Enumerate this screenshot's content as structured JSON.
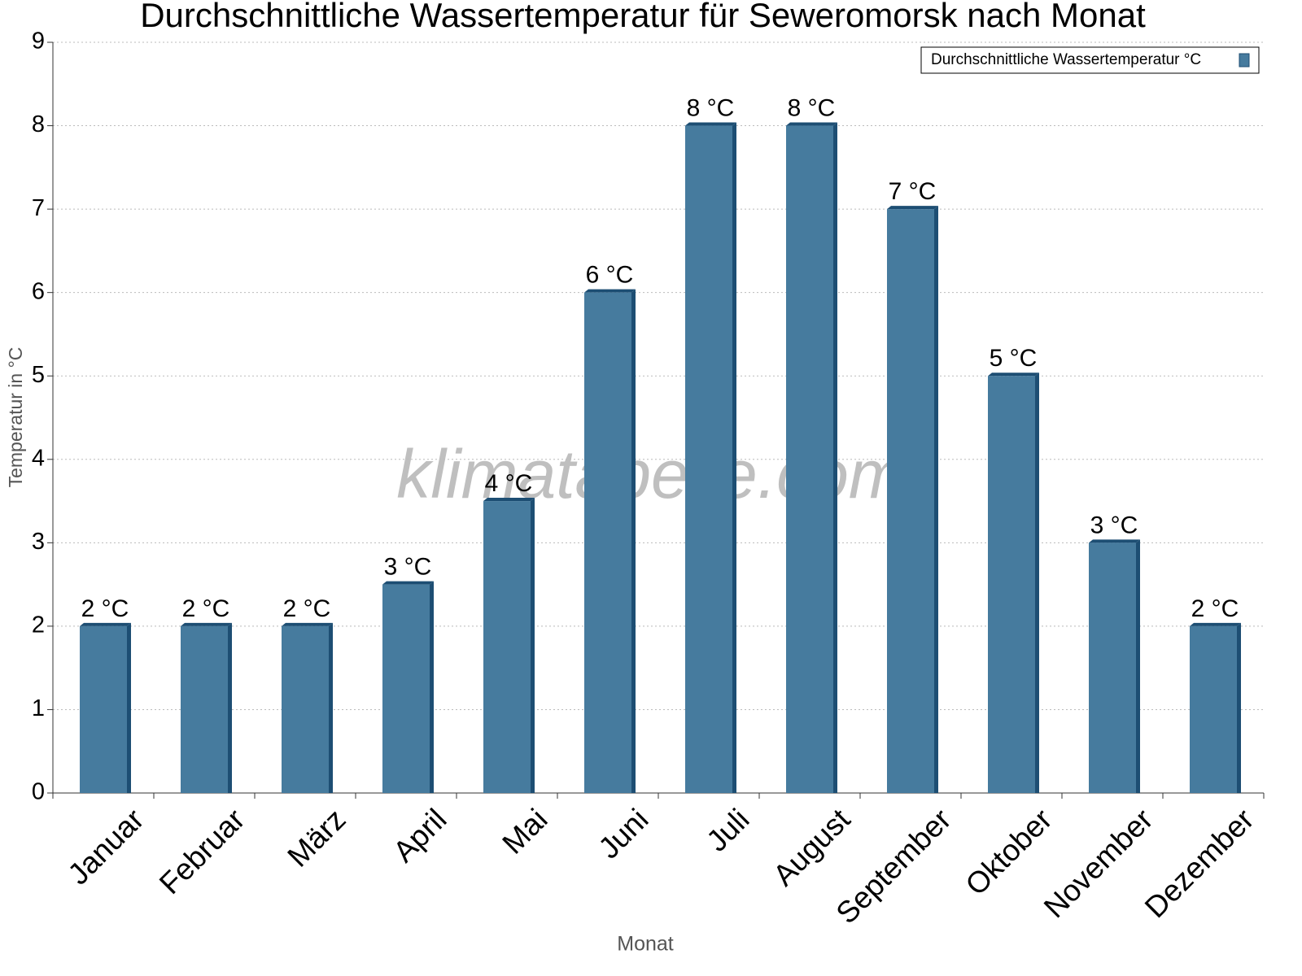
{
  "chart_data": {
    "type": "bar",
    "title": "Durchschnittliche Wassertemperatur für Seweromorsk nach Monat",
    "x_label": "Monat",
    "y_label": "Temperatur in °C",
    "watermark": "klimatabelle.com",
    "categories": [
      "Januar",
      "Februar",
      "März",
      "April",
      "Mai",
      "Juni",
      "Juli",
      "August",
      "September",
      "Oktober",
      "November",
      "Dezember"
    ],
    "series": [
      {
        "name": "Durchschnittliche Wassertemperatur °C",
        "color": "#467b9e",
        "side_color": "#1d4e73",
        "values": [
          2,
          2,
          2,
          2.5,
          3.5,
          6,
          8,
          8,
          7,
          5,
          3,
          2
        ],
        "value_labels": [
          "2 °C",
          "2 °C",
          "2 °C",
          "3 °C",
          "4 °C",
          "6 °C",
          "8 °C",
          "8 °C",
          "7 °C",
          "5 °C",
          "3 °C",
          "2 °C"
        ]
      }
    ],
    "ylim": [
      0,
      9
    ],
    "yticks": [
      0,
      1,
      2,
      3,
      4,
      5,
      6,
      7,
      8,
      9
    ],
    "grid": true,
    "legend": "top-right"
  }
}
